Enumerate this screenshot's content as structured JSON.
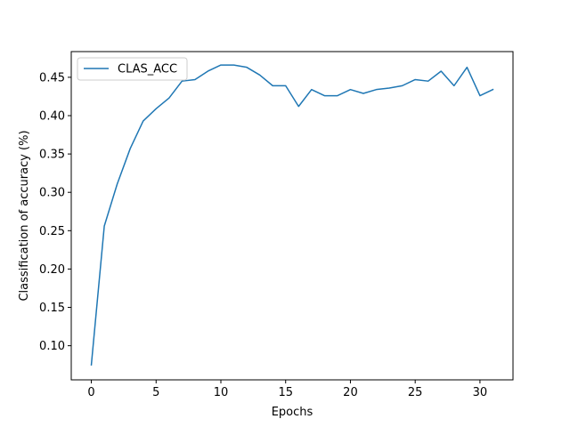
{
  "chart_data": {
    "type": "line",
    "title": "",
    "xlabel": "Epochs",
    "ylabel": "Classification of accuracy (%)",
    "xlim": [
      -1.55,
      32.55
    ],
    "ylim": [
      0.0555,
      0.4835
    ],
    "xticks": [
      0,
      5,
      10,
      15,
      20,
      25,
      30
    ],
    "xtick_labels": [
      "0",
      "5",
      "10",
      "15",
      "20",
      "25",
      "30"
    ],
    "yticks": [
      0.1,
      0.15,
      0.2,
      0.25,
      0.3,
      0.35,
      0.4,
      0.45
    ],
    "ytick_labels": [
      "0.10",
      "0.15",
      "0.20",
      "0.25",
      "0.30",
      "0.35",
      "0.40",
      "0.45"
    ],
    "grid": false,
    "legend": {
      "location": "upper left"
    },
    "x": [
      0,
      1,
      2,
      3,
      4,
      5,
      6,
      7,
      8,
      9,
      10,
      11,
      12,
      13,
      14,
      15,
      16,
      17,
      18,
      19,
      20,
      21,
      22,
      23,
      24,
      25,
      26,
      27,
      28,
      29,
      30,
      31
    ],
    "series": [
      {
        "name": "CLAS_ACC",
        "color": "#1f77b4",
        "values": [
          0.075,
          0.256,
          0.311,
          0.357,
          0.393,
          0.409,
          0.423,
          0.445,
          0.447,
          0.458,
          0.466,
          0.466,
          0.463,
          0.453,
          0.439,
          0.439,
          0.412,
          0.434,
          0.426,
          0.426,
          0.434,
          0.429,
          0.434,
          0.436,
          0.439,
          0.447,
          0.445,
          0.458,
          0.439,
          0.463,
          0.426,
          0.434
        ]
      }
    ]
  }
}
